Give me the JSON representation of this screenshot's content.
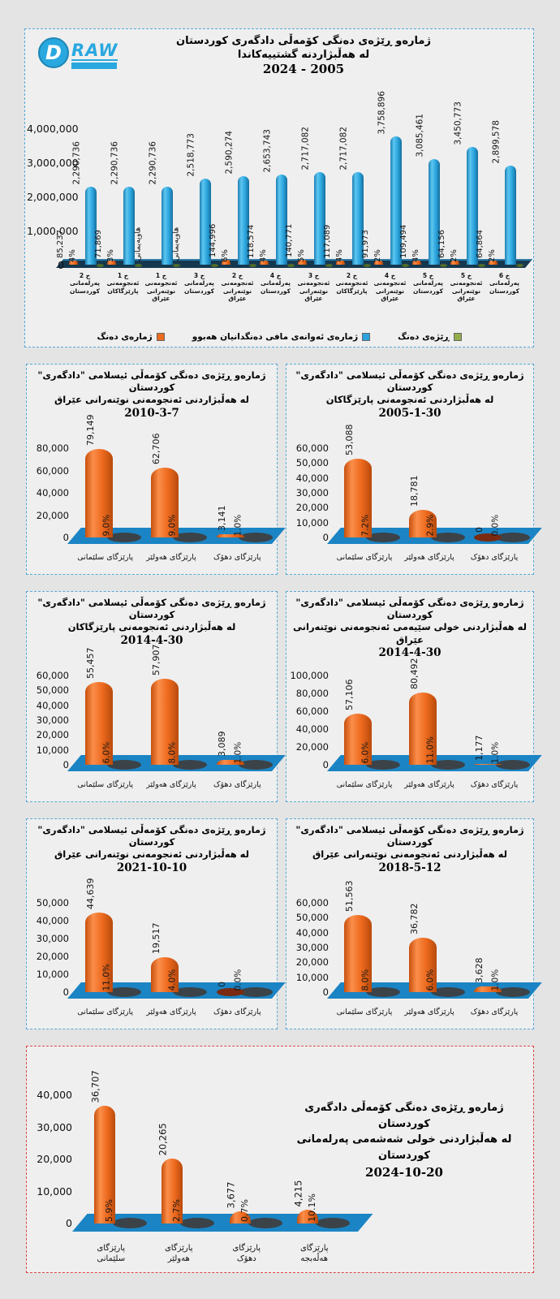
{
  "logo": {
    "d": "D",
    "raw": "RAW"
  },
  "colors": {
    "orange": "#ed6a1e",
    "blue": "#2ba4dd",
    "green": "#93ad49",
    "floor_small": "#1b84c4",
    "floor_main": "#16384f",
    "panel_border_blue": "#57a9d9",
    "panel_border_red": "#e04444"
  },
  "chart_data": [
    {
      "kind": "main",
      "type": "bar",
      "title_lines": [
        "ژمارەو ڕێژەی دەنگی کۆمەڵی دادگەری کوردستان",
        "له هەڵبژاردنه گشتییەکاندا",
        "2024 - 2005"
      ],
      "categories": [
        "خ 2\nپەرلەمانی\nکوردستان",
        "خ 1\nئەنجومەنی\nپارێزگاکان",
        "خ 1\nئەنجومەنی\nنوێنەرانی\nعێراق",
        "خ 3\nپەرلەمانی\nکوردستان",
        "خ 2\nئەنجومەنی\nنوێنەرانی\nعێراق",
        "خ 4\nپەرلەمانی\nکوردستان",
        "خ 3\nئەنجومەنی\nنوێنەرانی\nعێراق",
        "خ 2\nئەنجومەنی\nپارێزگاکان",
        "خ 4\nئەنجومەنی\nنوێنەرانی\nعێراق",
        "خ 5\nپەرلەمانی\nکوردستان",
        "خ 5\nئەنجومەنی\nنوێنەرانی\nعێراق",
        "خ 6\nپەرلەمانی\nکوردستان"
      ],
      "series": [
        {
          "name": "ژمارەی دەنگ",
          "color": "#ed6a1e",
          "values": [
            85237,
            71869,
            null,
            null,
            144996,
            118574,
            140771,
            117089,
            91973,
            109494,
            64156,
            64864
          ],
          "labels": [
            "85,237",
            "71,869",
            "هاوپەیمانی",
            "هاوپەیمانی",
            "144,996",
            "118,574",
            "140,771",
            "117,089",
            "91,973",
            "109,494",
            "64,156",
            "64,864"
          ]
        },
        {
          "name": "ژمارەی ئەوانەی مافی دەنگدانیان هەبوو",
          "color": "#2ba4dd",
          "values": [
            2290736,
            2290736,
            2290736,
            2518773,
            2590274,
            2653743,
            2717082,
            2717082,
            3758896,
            3085461,
            3450773,
            2899578
          ],
          "labels": [
            "2,290,736",
            "2,290,736",
            "2,290,736",
            "2,518,773",
            "2,590,274",
            "2,653,743",
            "2,717,082",
            "2,717,082",
            "3,758,896",
            "3,085,461",
            "3,450,773",
            "2,899,578"
          ]
        },
        {
          "name": "ڕێژەی دەنگ",
          "color": "#93ad49",
          "labels": [
            "4%",
            "3%",
            "",
            "",
            "6%",
            "4%",
            "5%",
            "4%",
            "2%",
            "4%",
            "2%",
            "2%"
          ]
        }
      ],
      "ylim": [
        0,
        4000000
      ],
      "yticks": [
        0,
        1000000,
        2000000,
        3000000,
        4000000
      ],
      "ytick_labels": [
        "0",
        "1,000,000",
        "2,000,000",
        "3,000,000",
        "4,000,000"
      ],
      "legend_position": "bottom"
    },
    {
      "kind": "small",
      "type": "bar",
      "title_lines": [
        "ژمارەو ڕێژەی دەنگی کۆمەڵی ئیسلامی \"دادگەری\"",
        "کوردستان",
        "له هەڵبژاردنی ئەنجومەنی نوێنەرانی عێراق",
        "2010-3-7"
      ],
      "categories": [
        "پارێزگای سلێمانی",
        "پارێزگای هەولێر",
        "پارێزگای دهۆک"
      ],
      "values": [
        79149,
        62706,
        3141
      ],
      "value_labels": [
        "79,149",
        "62,706",
        "3,141"
      ],
      "pct_labels": [
        "9.0%",
        "9.0%",
        "1.0%"
      ],
      "ylim": [
        0,
        80000
      ],
      "yticks": [
        0,
        20000,
        40000,
        60000,
        80000
      ],
      "ytick_labels": [
        "0",
        "20,000",
        "40,000",
        "60,000",
        "80,000"
      ]
    },
    {
      "kind": "small",
      "type": "bar",
      "title_lines": [
        "ژمارەو ڕێژەی دەنگی کۆمەڵی ئیسلامی \"دادگەری\"",
        "کوردستان",
        "له هەڵبژاردنی ئەنجومەنی پارێزگاکان",
        "2005-1-30"
      ],
      "categories": [
        "پارێزگای سلێمانی",
        "پارێزگای هەولێر",
        "پارێزگای دهۆک"
      ],
      "values": [
        53088,
        18781,
        0
      ],
      "value_labels": [
        "53,088",
        "18,781",
        "0"
      ],
      "pct_labels": [
        "7.2%",
        "2.9%",
        "0.0%"
      ],
      "ylim": [
        0,
        60000
      ],
      "yticks": [
        0,
        10000,
        20000,
        30000,
        40000,
        50000,
        60000
      ],
      "ytick_labels": [
        "0",
        "10,000",
        "20,000",
        "30,000",
        "40,000",
        "50,000",
        "60,000"
      ]
    },
    {
      "kind": "small",
      "type": "bar",
      "title_lines": [
        "ژمارەو ڕێژەی دەنگی کۆمەڵی ئیسلامی \"دادگەری\"",
        "کوردستان",
        "له هەڵبژاردنی ئەنجومەنی پارێزگاکان",
        "2014-4-30"
      ],
      "categories": [
        "پارێزگای سلێمانی",
        "پارێزگای هەولێر",
        "پارێزگای دهۆک"
      ],
      "values": [
        55457,
        57907,
        3089
      ],
      "value_labels": [
        "55,457",
        "57,907",
        "3,089"
      ],
      "pct_labels": [
        "6.0%",
        "8.0%",
        "1.0%"
      ],
      "ylim": [
        0,
        60000
      ],
      "yticks": [
        0,
        10000,
        20000,
        30000,
        40000,
        50000,
        60000
      ],
      "ytick_labels": [
        "0",
        "10,000",
        "20,000",
        "30,000",
        "40,000",
        "50,000",
        "60,000"
      ]
    },
    {
      "kind": "small",
      "type": "bar",
      "title_lines": [
        "ژمارەو ڕێژەی دەنگی کۆمەڵی ئیسلامی \"دادگەری\"",
        "کوردستان",
        "له هەڵبژاردنی خولی سێیەمی ئەنجومەنی نوێنەرانی عێراق",
        "2014-4-30"
      ],
      "categories": [
        "پارێزگای سلێمانی",
        "پارێزگای هەولێر",
        "پارێزگای دهۆک"
      ],
      "values": [
        57106,
        80492,
        1177
      ],
      "value_labels": [
        "57,106",
        "80,492",
        "1,177"
      ],
      "pct_labels": [
        "6.0%",
        "11.0%",
        "1.0%"
      ],
      "ylim": [
        0,
        100000
      ],
      "yticks": [
        0,
        20000,
        40000,
        60000,
        80000,
        100000
      ],
      "ytick_labels": [
        "0",
        "20,000",
        "40,000",
        "60,000",
        "80,000",
        "100,000"
      ]
    },
    {
      "kind": "small",
      "type": "bar",
      "title_lines": [
        "ژمارەو ڕێژەی دەنگی کۆمەڵی ئیسلامی \"دادگەری\"",
        "کوردستان",
        "له هەڵبژاردنی ئەنجومەنی نوێنەرانی عێراق",
        "2021-10-10"
      ],
      "categories": [
        "پارێزگای سلێمانی",
        "پارێزگای هەولێر",
        "پارێزگای دهۆک"
      ],
      "values": [
        44639,
        19517,
        0
      ],
      "value_labels": [
        "44,639",
        "19,517",
        "0"
      ],
      "pct_labels": [
        "11.0%",
        "4.0%",
        "0.0%"
      ],
      "ylim": [
        0,
        50000
      ],
      "yticks": [
        0,
        10000,
        20000,
        30000,
        40000,
        50000
      ],
      "ytick_labels": [
        "0",
        "10,000",
        "20,000",
        "30,000",
        "40,000",
        "50,000"
      ]
    },
    {
      "kind": "small",
      "type": "bar",
      "title_lines": [
        "ژمارەو ڕێژەی دەنگی کۆمەڵی ئیسلامی \"دادگەری\"",
        "کوردستان",
        "له هەڵبژاردنی ئەنجومەنی نوێنەرانی عێراق",
        "2018-5-12"
      ],
      "categories": [
        "پارێزگای سلێمانی",
        "پارێزگای هەولێر",
        "پارێزگای دهۆک"
      ],
      "values": [
        51563,
        36782,
        3628
      ],
      "value_labels": [
        "51,563",
        "36,782",
        "3,628"
      ],
      "pct_labels": [
        "8.0%",
        "6.0%",
        "1.0%"
      ],
      "ylim": [
        0,
        60000
      ],
      "yticks": [
        0,
        10000,
        20000,
        30000,
        40000,
        50000,
        60000
      ],
      "ytick_labels": [
        "0",
        "10,000",
        "20,000",
        "30,000",
        "40,000",
        "50,000",
        "60,000"
      ]
    },
    {
      "kind": "wide",
      "type": "bar",
      "title_lines": [
        "ژمارەو ڕێژەی دەنگی کۆمەڵی دادگەری کوردستان",
        "له هەڵبژاردنی خولی شەشەمی پەرلەمانی کوردستان",
        "2024-10-20"
      ],
      "categories": [
        "پارێزگای\nسلێمانی",
        "پارێزگای\nهەولێر",
        "پارێزگای\nدهۆک",
        "پارێزگای\nهەڵەبجە"
      ],
      "values": [
        36707,
        20265,
        3677,
        4215
      ],
      "value_labels": [
        "36,707",
        "20,265",
        "3,677",
        "4,215"
      ],
      "pct_labels": [
        "5.9%",
        "2.7%",
        "0.7%",
        "10.1%"
      ],
      "ylim": [
        0,
        40000
      ],
      "yticks": [
        0,
        10000,
        20000,
        30000,
        40000
      ],
      "ytick_labels": [
        "0",
        "10,000",
        "20,000",
        "30,000",
        "40,000"
      ]
    }
  ]
}
